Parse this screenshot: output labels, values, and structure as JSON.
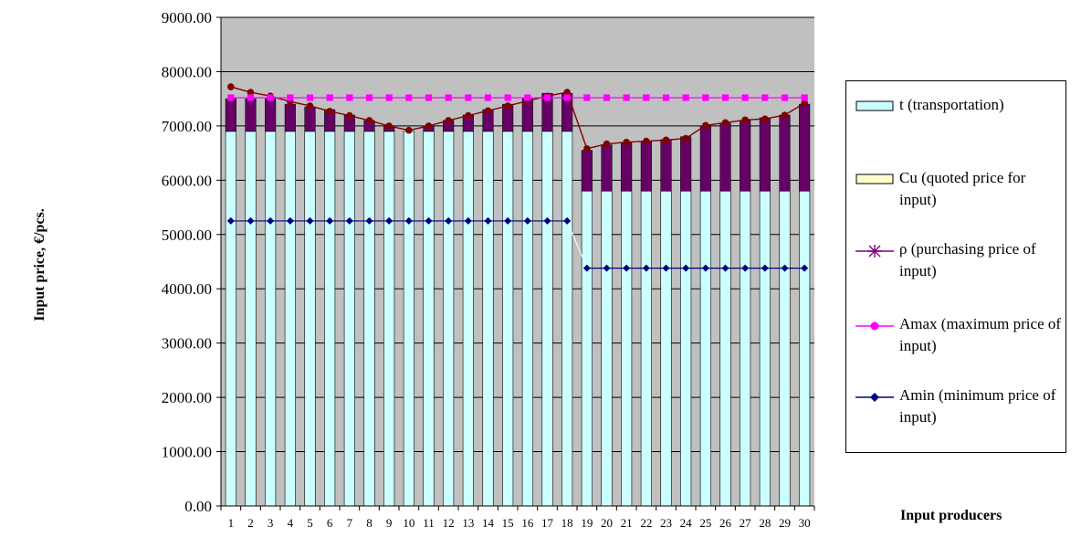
{
  "chart_data": {
    "type": "bar",
    "ylabel": "Input price, €/pcs.",
    "xlabel": "Input producers",
    "ylim": [
      0,
      9000
    ],
    "y_ticks": [
      "0.00",
      "1000.00",
      "2000.00",
      "3000.00",
      "4000.00",
      "5000.00",
      "6000.00",
      "7000.00",
      "8000.00",
      "9000.00"
    ],
    "categories": [
      "1",
      "2",
      "3",
      "4",
      "5",
      "6",
      "7",
      "8",
      "9",
      "10",
      "11",
      "12",
      "13",
      "14",
      "15",
      "16",
      "17",
      "18",
      "19",
      "20",
      "21",
      "22",
      "23",
      "24",
      "25",
      "26",
      "27",
      "28",
      "29",
      "30"
    ],
    "grid": true,
    "legend_position": "right",
    "series": [
      {
        "name": "t (transportation)",
        "kind": "bar",
        "color": "#ccffff",
        "values": [
          6900,
          6900,
          6900,
          6900,
          6900,
          6900,
          6900,
          6900,
          6900,
          6900,
          6900,
          6900,
          6900,
          6900,
          6900,
          6900,
          6900,
          6900,
          5800,
          5800,
          5800,
          5800,
          5800,
          5800,
          5800,
          5800,
          5800,
          5800,
          5800,
          5800
        ]
      },
      {
        "name": "Cu (quoted price for input)",
        "kind": "bar",
        "color": "#660066",
        "values": [
          600,
          600,
          600,
          500,
          450,
          400,
          300,
          200,
          100,
          0,
          100,
          200,
          300,
          400,
          500,
          600,
          700,
          700,
          750,
          850,
          900,
          920,
          950,
          1000,
          1200,
          1250,
          1300,
          1350,
          1400,
          1600
        ]
      },
      {
        "name": "ρ (purchasing price of input)",
        "kind": "line",
        "color": "#800000",
        "values": [
          7720,
          7620,
          7550,
          7450,
          7370,
          7270,
          7190,
          7100,
          7000,
          6920,
          7000,
          7100,
          7190,
          7280,
          7370,
          7460,
          7550,
          7620,
          6580,
          6670,
          6700,
          6720,
          6740,
          6770,
          7010,
          7060,
          7110,
          7130,
          7200,
          7420
        ]
      },
      {
        "name": "Amax (maximum price of input)",
        "kind": "line",
        "color": "#ff00ff",
        "values": [
          7520,
          7520,
          7520,
          7520,
          7520,
          7520,
          7520,
          7520,
          7520,
          7520,
          7520,
          7520,
          7520,
          7520,
          7520,
          7520,
          7520,
          7520,
          7520,
          7520,
          7520,
          7520,
          7520,
          7520,
          7520,
          7520,
          7520,
          7520,
          7520,
          7520
        ]
      },
      {
        "name": "Amin (minimum price of input)",
        "kind": "line",
        "color": "#000080",
        "values": [
          5250,
          5250,
          5250,
          5250,
          5250,
          5250,
          5250,
          5250,
          5250,
          5250,
          5250,
          5250,
          5250,
          5250,
          5250,
          5250,
          5250,
          5250,
          4380,
          4380,
          4380,
          4380,
          4380,
          4380,
          4380,
          4380,
          4380,
          4380,
          4380,
          4380
        ]
      }
    ]
  },
  "legend": {
    "items": [
      {
        "label": "t (transportation)",
        "symbol": "box",
        "color": "#ccffff"
      },
      {
        "label": "Cu (quoted price for input)",
        "symbol": "box",
        "color": "#ffffcc"
      },
      {
        "label": "ρ (purchasing price of input)",
        "symbol": "star-line",
        "color": "#800080"
      },
      {
        "label": "Amax (maximum price of input)",
        "symbol": "circle-line",
        "color": "#ff00ff"
      },
      {
        "label": "Amin (minimum price of input)",
        "symbol": "diamond-line",
        "color": "#000080"
      }
    ]
  }
}
